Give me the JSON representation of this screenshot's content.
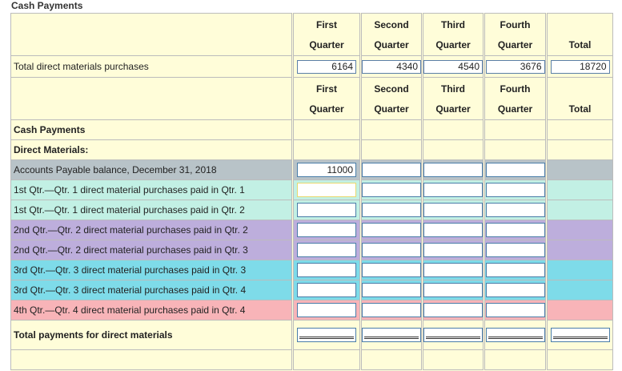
{
  "page_title": "Cash Payments",
  "headers": {
    "cols": [
      {
        "line1": "First",
        "line2": "Quarter"
      },
      {
        "line1": "Second",
        "line2": "Quarter"
      },
      {
        "line1": "Third",
        "line2": "Quarter"
      },
      {
        "line1": "Fourth",
        "line2": "Quarter"
      }
    ],
    "total": "Total"
  },
  "purchases": {
    "label": "Total direct materials purchases",
    "values": [
      "6164",
      "4340",
      "4540",
      "3676"
    ],
    "total": "18720"
  },
  "section": {
    "title": "Cash Payments",
    "subtitle": "Direct Materials:"
  },
  "rows": [
    {
      "label": "Accounts Payable balance, December 31, 2018",
      "color": "#b8c3c8",
      "q1": "11000"
    },
    {
      "label": "1st Qtr.—Qtr. 1 direct material purchases paid in Qtr. 1",
      "color": "#c2f0e4",
      "q1": ""
    },
    {
      "label": "1st Qtr.—Qtr. 1 direct material purchases paid in Qtr. 2",
      "color": "#c2f0e4",
      "q1": ""
    },
    {
      "label": "2nd Qtr.—Qtr. 2 direct material purchases paid in Qtr. 2",
      "color": "#bdaedc",
      "q1": ""
    },
    {
      "label": "2nd Qtr.—Qtr. 2 direct material purchases paid in Qtr. 3",
      "color": "#bdaedc",
      "q1": ""
    },
    {
      "label": "3rd Qtr.—Qtr. 3 direct material purchases paid in Qtr. 3",
      "color": "#7edbe9",
      "q1": ""
    },
    {
      "label": "3rd Qtr.—Qtr. 3 direct material purchases paid in Qtr. 4",
      "color": "#7edbe9",
      "q1": ""
    },
    {
      "label": "4th Qtr.—Qtr. 4 direct material purchases paid in Qtr. 4",
      "color": "#f8b4b8",
      "q1": ""
    }
  ],
  "total_row": {
    "label": "Total payments for direct materials"
  }
}
